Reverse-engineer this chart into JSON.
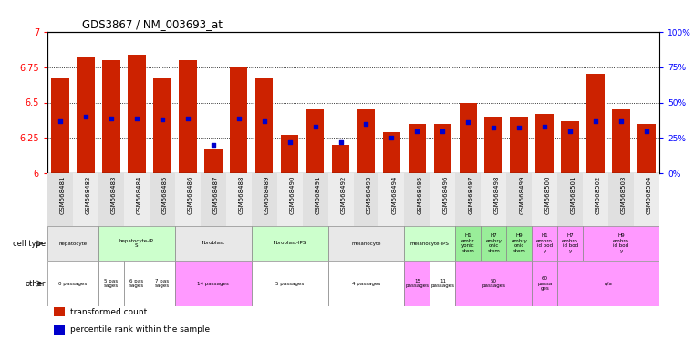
{
  "title": "GDS3867 / NM_003693_at",
  "samples": [
    "GSM568481",
    "GSM568482",
    "GSM568483",
    "GSM568484",
    "GSM568485",
    "GSM568486",
    "GSM568487",
    "GSM568488",
    "GSM568489",
    "GSM568490",
    "GSM568491",
    "GSM568492",
    "GSM568493",
    "GSM568494",
    "GSM568495",
    "GSM568496",
    "GSM568497",
    "GSM568498",
    "GSM568499",
    "GSM568500",
    "GSM568501",
    "GSM568502",
    "GSM568503",
    "GSM568504"
  ],
  "bar_values": [
    6.67,
    6.82,
    6.8,
    6.84,
    6.67,
    6.8,
    6.17,
    6.75,
    6.67,
    6.27,
    6.45,
    6.2,
    6.45,
    6.29,
    6.35,
    6.35,
    6.5,
    6.4,
    6.4,
    6.42,
    6.37,
    6.7,
    6.45,
    6.35
  ],
  "percentile_values": [
    37,
    40,
    39,
    39,
    38,
    39,
    20,
    39,
    37,
    22,
    33,
    22,
    35,
    25,
    30,
    30,
    36,
    32,
    32,
    33,
    30,
    37,
    37,
    30
  ],
  "bar_color": "#cc2200",
  "dot_color": "#0000cc",
  "ymin": 6.0,
  "ymax": 7.0,
  "yticks": [
    6.0,
    6.25,
    6.5,
    6.75,
    7.0
  ],
  "ytick_labels": [
    "6",
    "6.25",
    "6.5",
    "6.75",
    "7"
  ],
  "right_yticks": [
    0,
    25,
    50,
    75,
    100
  ],
  "right_ytick_labels": [
    "0%",
    "25%",
    "50%",
    "75%",
    "100%"
  ],
  "cell_type_groups": [
    {
      "label": "hepatocyte",
      "start": 0,
      "end": 2,
      "color": "#e8e8e8"
    },
    {
      "label": "hepatocyte-iP\nS",
      "start": 2,
      "end": 5,
      "color": "#ccffcc"
    },
    {
      "label": "fibroblast",
      "start": 5,
      "end": 8,
      "color": "#e8e8e8"
    },
    {
      "label": "fibroblast-IPS",
      "start": 8,
      "end": 11,
      "color": "#ccffcc"
    },
    {
      "label": "melanocyte",
      "start": 11,
      "end": 14,
      "color": "#e8e8e8"
    },
    {
      "label": "melanocyte-IPS",
      "start": 14,
      "end": 16,
      "color": "#ccffcc"
    },
    {
      "label": "H1\nembr\nyonic\nstem",
      "start": 16,
      "end": 17,
      "color": "#99ee99"
    },
    {
      "label": "H7\nembry\nonic\nstem",
      "start": 17,
      "end": 18,
      "color": "#99ee99"
    },
    {
      "label": "H9\nembry\nonic\nstem",
      "start": 18,
      "end": 19,
      "color": "#99ee99"
    },
    {
      "label": "H1\nembro\nid bod\ny",
      "start": 19,
      "end": 20,
      "color": "#ff99ff"
    },
    {
      "label": "H7\nembro\nid bod\ny",
      "start": 20,
      "end": 21,
      "color": "#ff99ff"
    },
    {
      "label": "H9\nembro\nid bod\ny",
      "start": 21,
      "end": 24,
      "color": "#ff99ff"
    }
  ],
  "other_groups": [
    {
      "label": "0 passages",
      "start": 0,
      "end": 2,
      "color": "#ffffff"
    },
    {
      "label": "5 pas\nsages",
      "start": 2,
      "end": 3,
      "color": "#ffffff"
    },
    {
      "label": "6 pas\nsages",
      "start": 3,
      "end": 4,
      "color": "#ffffff"
    },
    {
      "label": "7 pas\nsages",
      "start": 4,
      "end": 5,
      "color": "#ffffff"
    },
    {
      "label": "14 passages",
      "start": 5,
      "end": 8,
      "color": "#ff99ff"
    },
    {
      "label": "5 passages",
      "start": 8,
      "end": 11,
      "color": "#ffffff"
    },
    {
      "label": "4 passages",
      "start": 11,
      "end": 14,
      "color": "#ffffff"
    },
    {
      "label": "15\npassages",
      "start": 14,
      "end": 15,
      "color": "#ff99ff"
    },
    {
      "label": "11\npassages",
      "start": 15,
      "end": 16,
      "color": "#ffffff"
    },
    {
      "label": "50\npassages",
      "start": 16,
      "end": 19,
      "color": "#ff99ff"
    },
    {
      "label": "60\npassa\nges",
      "start": 19,
      "end": 20,
      "color": "#ff99ff"
    },
    {
      "label": "n/a",
      "start": 20,
      "end": 24,
      "color": "#ff99ff"
    }
  ],
  "legend_items": [
    {
      "color": "#cc2200",
      "label": "transformed count"
    },
    {
      "color": "#0000cc",
      "label": "percentile rank within the sample"
    }
  ]
}
